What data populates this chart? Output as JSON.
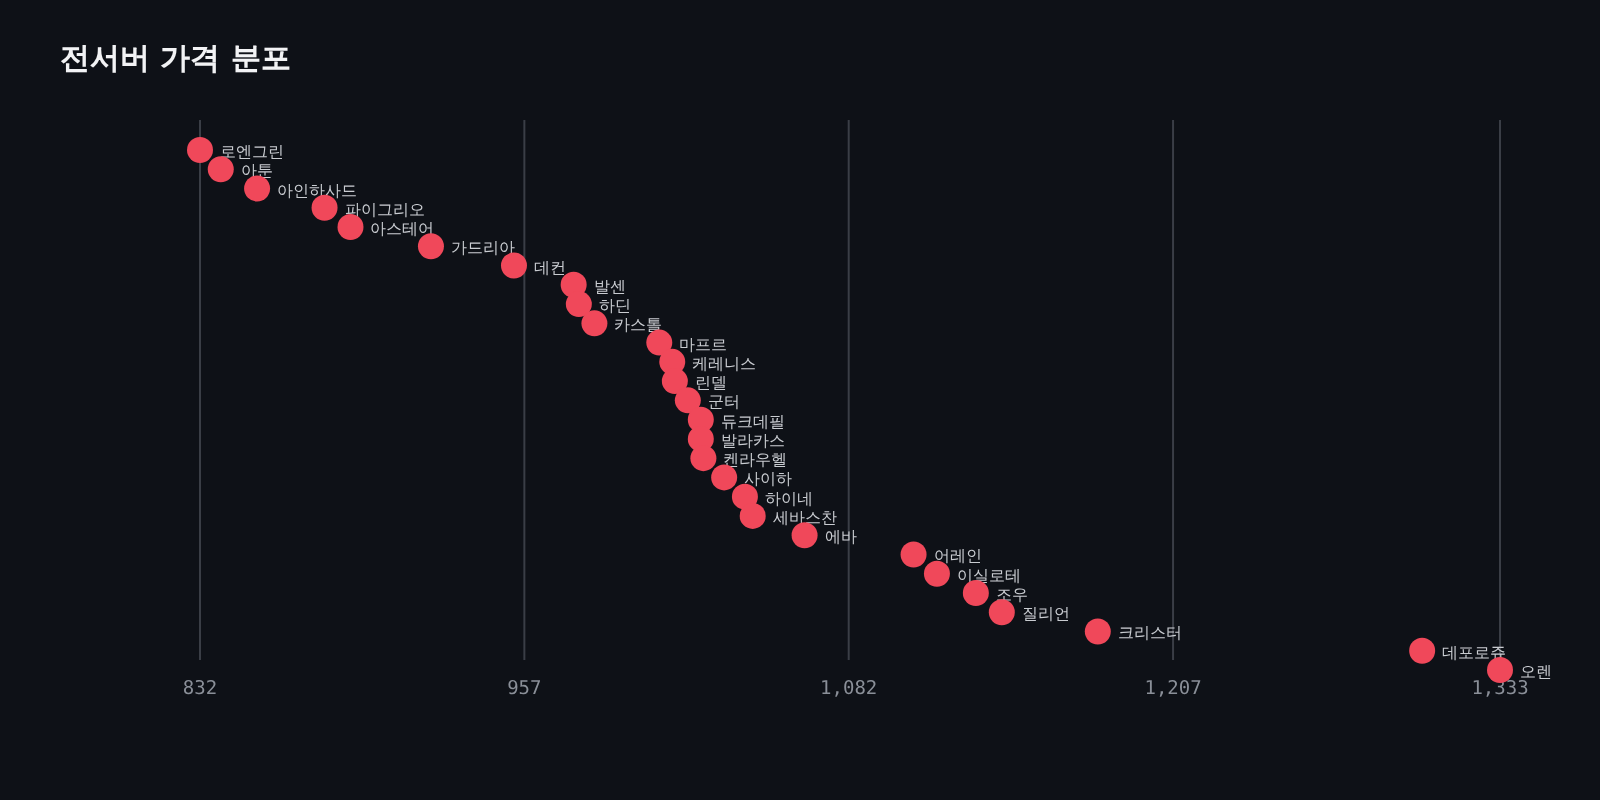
{
  "chart_data": {
    "type": "scatter",
    "orientation": "horizontal",
    "title": "전서버 가격 분포",
    "categories": [
      "로엔그린",
      "아툰",
      "아인하사드",
      "파이그리오",
      "아스테어",
      "가드리아",
      "데컨",
      "발센",
      "하딘",
      "카스톨",
      "마프르",
      "케레니스",
      "린델",
      "군터",
      "듀크데필",
      "발라카스",
      "켄라우헬",
      "사이하",
      "하이네",
      "세바스찬",
      "에바",
      "어레인",
      "이실로테",
      "조우",
      "질리언",
      "크리스터",
      "데포로쥬",
      "오렌"
    ],
    "values": [
      832,
      840,
      854,
      880,
      890,
      921,
      953,
      976,
      978,
      984,
      1009,
      1014,
      1015,
      1020,
      1025,
      1025,
      1026,
      1034,
      1042,
      1045,
      1065,
      1107,
      1116,
      1131,
      1141,
      1178,
      1303,
      1333
    ],
    "color": "#f0485a",
    "marker": "circle",
    "grid": "x",
    "xlim": [
      832,
      1333
    ],
    "xticks": [
      832,
      957,
      {
        "value": 1082,
        "label": "1,082"
      },
      {
        "value": 1207,
        "label": "1,207"
      },
      {
        "value": 1333,
        "label": "1,333"
      }
    ]
  }
}
